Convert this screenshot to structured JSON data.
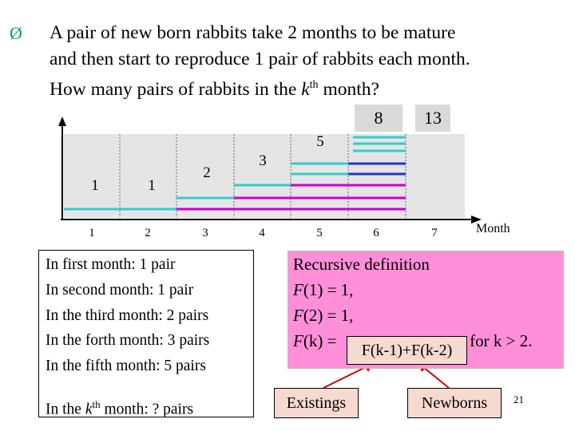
{
  "question": {
    "bullet_glyph": "Ø",
    "line1": "A pair of new born rabbits take 2 months to be mature",
    "line2": "and then start to reproduce 1 pair of rabbits each month.",
    "line3_prefix": "How many pairs of rabbits in the ",
    "line3_var": "k",
    "line3_sup": "th",
    "line3_suffix": " month?"
  },
  "diagram": {
    "top_labels": [
      "8",
      "13"
    ],
    "bar_labels": [
      "1",
      "1",
      "2",
      "3",
      "5"
    ],
    "months": [
      "1",
      "2",
      "3",
      "4",
      "5",
      "6",
      "7"
    ],
    "axis_label": "Month",
    "colors": {
      "teal": "#33cccc",
      "magenta": "#cc00cc",
      "blue": "#2233cc",
      "panel": "#e5e5e5",
      "pink": "#ff8fd8",
      "tag": "#f6d9cf"
    }
  },
  "counts_box": {
    "lines": [
      "In first month: 1 pair",
      "In second month: 1 pair",
      "In the third month: 2 pairs",
      "In the forth month: 3 pairs",
      "In the fifth month: 5 pairs"
    ],
    "kth_prefix": "In the ",
    "kth_var": "k",
    "kth_sup": "th",
    "kth_suffix": " month:  ?  pairs"
  },
  "recursive": {
    "title": "Recursive definition",
    "f1": "(1) = 1,",
    "f2": "(2) = 1,",
    "fk_lhs": "(k) = ",
    "formula": "F(k-1)+F(k-2)",
    "condition": ", for k > 2."
  },
  "legend": {
    "existings": "Existings",
    "newborns": "Newborns"
  },
  "page_number": "21"
}
